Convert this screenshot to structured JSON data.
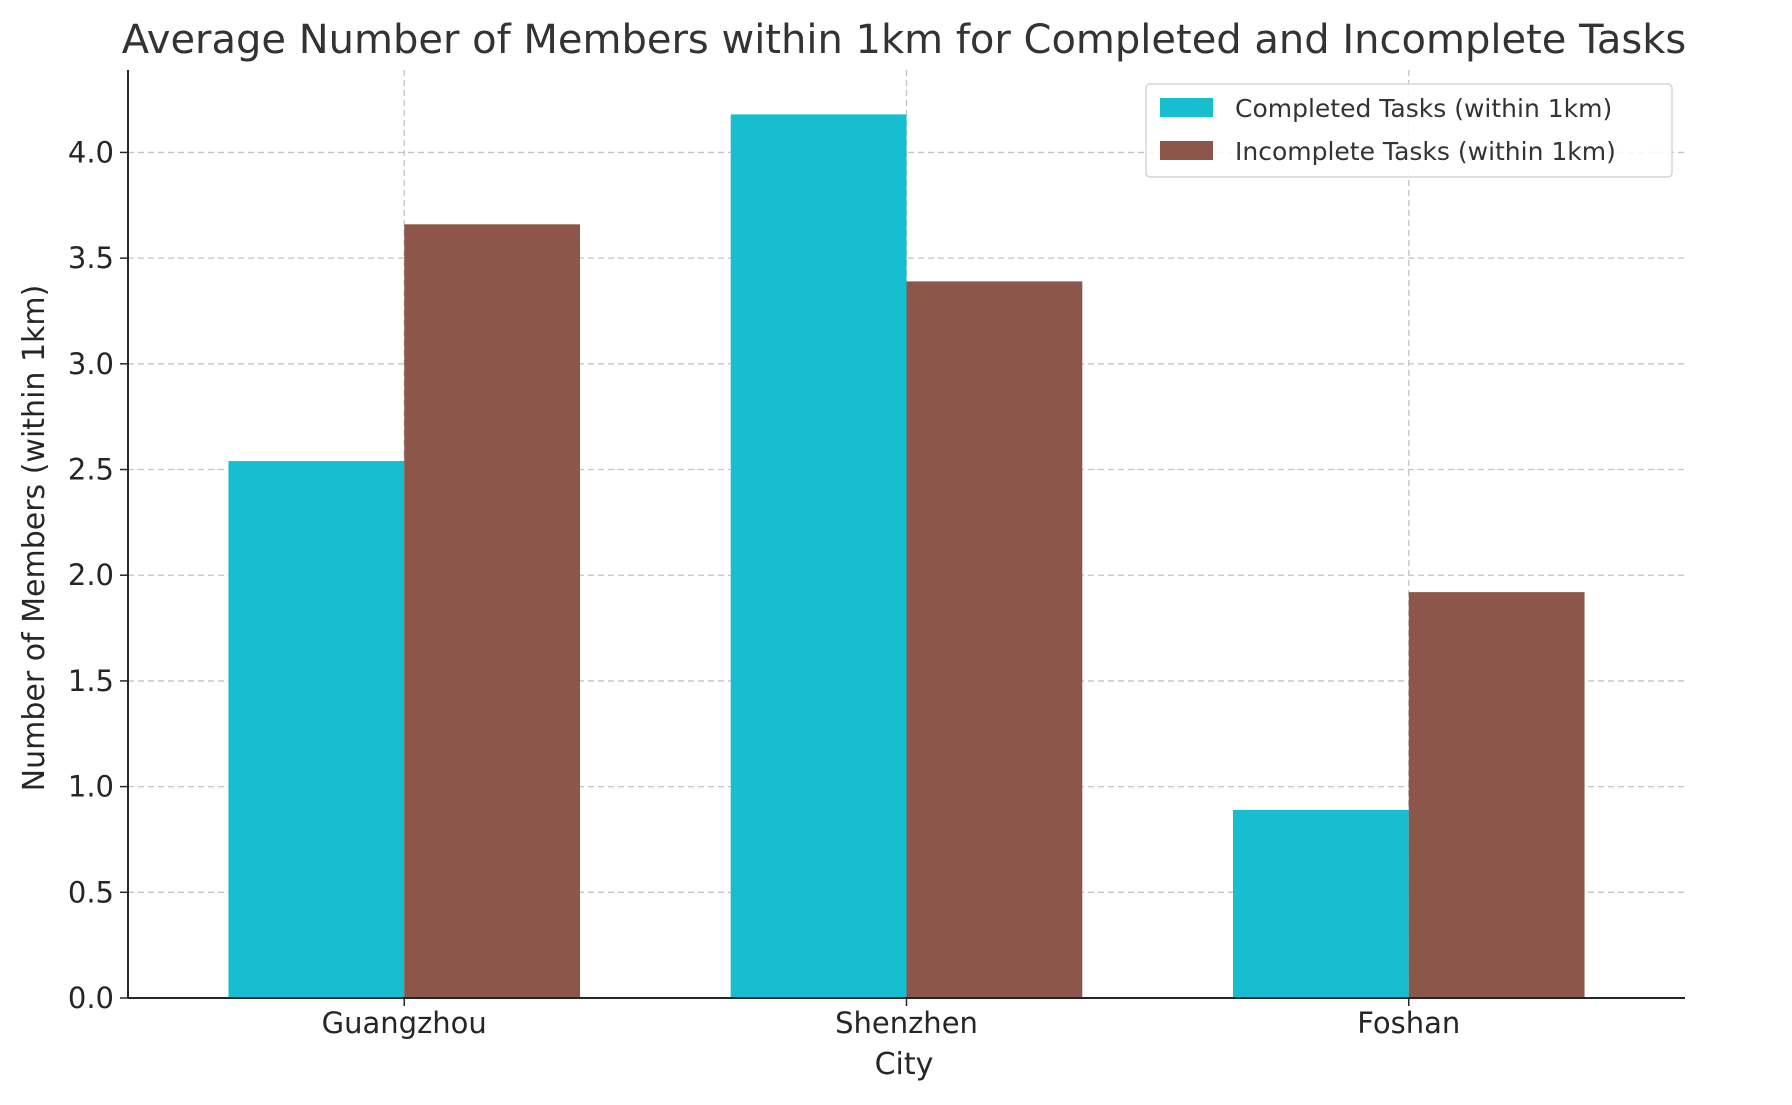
{
  "chart_data": {
    "type": "bar",
    "title": "Average Number of Members within 1km for Completed and Incomplete Tasks",
    "xlabel": "City",
    "ylabel": "Number of Members (within 1km)",
    "categories": [
      "Guangzhou",
      "Shenzhen",
      "Foshan"
    ],
    "series": [
      {
        "name": "Completed Tasks (within 1km)",
        "color": "#17becf",
        "values": [
          2.54,
          4.18,
          0.89
        ]
      },
      {
        "name": "Incomplete Tasks (within 1km)",
        "color": "#8c564b",
        "values": [
          3.66,
          3.39,
          1.92
        ]
      }
    ],
    "ylim": [
      0,
      4.39
    ],
    "yticks": [
      "0.0",
      "0.5",
      "1.0",
      "1.5",
      "2.0",
      "2.5",
      "3.0",
      "3.5",
      "4.0"
    ],
    "grid": true,
    "legend_position": "top-right"
  }
}
